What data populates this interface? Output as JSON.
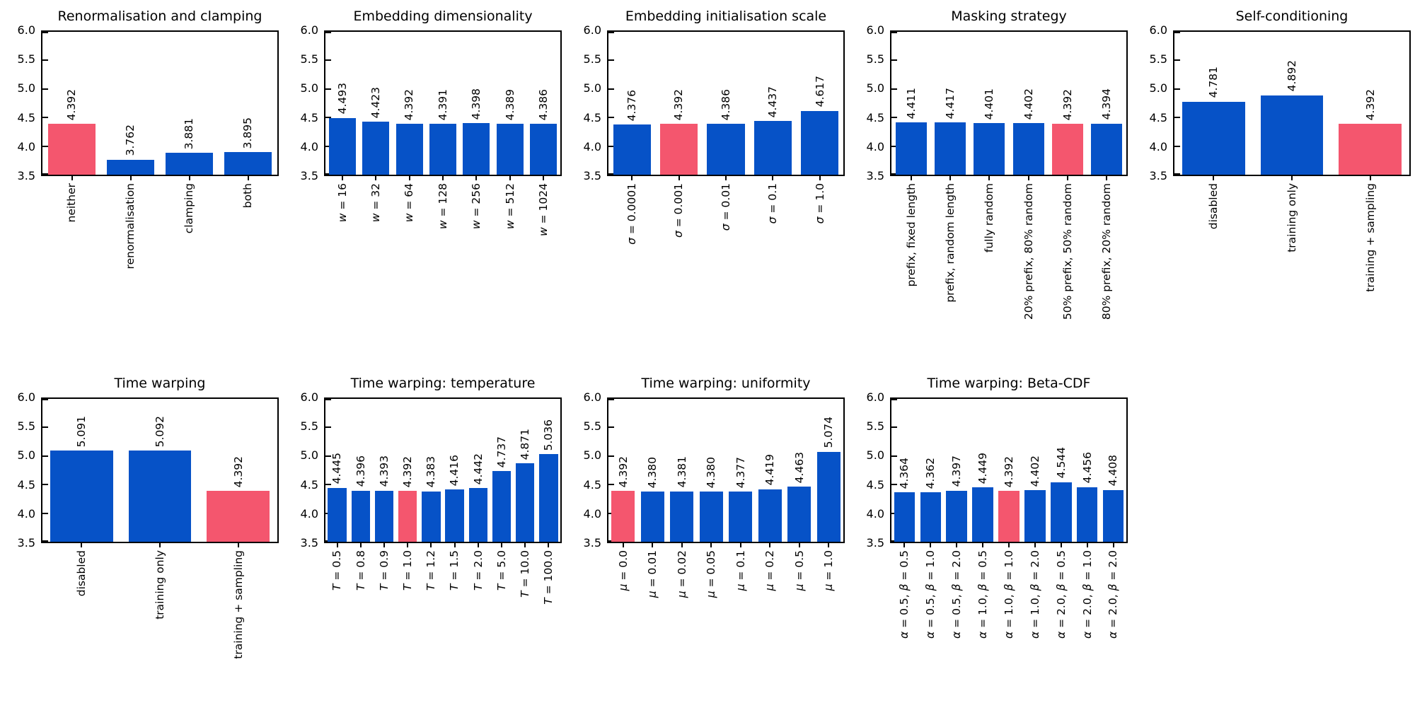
{
  "figure": {
    "background": "#ffffff",
    "bar_color_default": "#0652C7",
    "bar_color_highlight": "#F4566E",
    "spine_color": "#000000",
    "ylim": [
      3.5,
      6.0
    ],
    "yticks": [
      "6.0",
      "5.5",
      "5.0",
      "4.5",
      "4.0",
      "3.5"
    ],
    "grid": false,
    "legend": null
  },
  "chart_data": [
    {
      "type": "bar",
      "title": "Renormalisation and clamping",
      "row": 0,
      "col": 0,
      "categories": [
        "neither",
        "renormalisation",
        "clamping",
        "both"
      ],
      "values": [
        4.392,
        3.762,
        3.881,
        3.895
      ],
      "value_labels": [
        "4.392",
        "3.762",
        "3.881",
        "3.895"
      ],
      "highlight_index": 0,
      "ylim": [
        3.5,
        6.0
      ],
      "xlabel": "",
      "ylabel": ""
    },
    {
      "type": "bar",
      "title": "Embedding dimensionality",
      "row": 0,
      "col": 1,
      "categories": [
        "w = 16",
        "w = 32",
        "w = 64",
        "w = 128",
        "w = 256",
        "w = 512",
        "w = 1024"
      ],
      "values": [
        4.493,
        4.423,
        4.392,
        4.391,
        4.398,
        4.389,
        4.386
      ],
      "value_labels": [
        "4.493",
        "4.423",
        "4.392",
        "4.391",
        "4.398",
        "4.389",
        "4.386"
      ],
      "highlight_index": null,
      "ylim": [
        3.5,
        6.0
      ],
      "xlabel": "",
      "ylabel": ""
    },
    {
      "type": "bar",
      "title": "Embedding initialisation scale",
      "row": 0,
      "col": 2,
      "categories": [
        "σ = 0.0001",
        "σ = 0.001",
        "σ = 0.01",
        "σ = 0.1",
        "σ = 1.0"
      ],
      "values": [
        4.376,
        4.392,
        4.386,
        4.437,
        4.617
      ],
      "value_labels": [
        "4.376",
        "4.392",
        "4.386",
        "4.437",
        "4.617"
      ],
      "highlight_index": 1,
      "ylim": [
        3.5,
        6.0
      ],
      "xlabel": "",
      "ylabel": ""
    },
    {
      "type": "bar",
      "title": "Masking strategy",
      "row": 0,
      "col": 3,
      "categories": [
        "prefix, fixed length",
        "prefix, random length",
        "fully random",
        "20% prefix, 80% random",
        "50% prefix, 50% random",
        "80% prefix, 20% random"
      ],
      "values": [
        4.411,
        4.417,
        4.401,
        4.402,
        4.392,
        4.394
      ],
      "value_labels": [
        "4.411",
        "4.417",
        "4.401",
        "4.402",
        "4.392",
        "4.394"
      ],
      "highlight_index": 4,
      "ylim": [
        3.5,
        6.0
      ],
      "xlabel": "",
      "ylabel": ""
    },
    {
      "type": "bar",
      "title": "Self-conditioning",
      "row": 0,
      "col": 4,
      "categories": [
        "disabled",
        "training only",
        "training + sampling"
      ],
      "values": [
        4.781,
        4.892,
        4.392
      ],
      "value_labels": [
        "4.781",
        "4.892",
        "4.392"
      ],
      "highlight_index": 2,
      "ylim": [
        3.5,
        6.0
      ],
      "xlabel": "",
      "ylabel": ""
    },
    {
      "type": "bar",
      "title": "Time warping",
      "row": 1,
      "col": 0,
      "categories": [
        "disabled",
        "training only",
        "training + sampling"
      ],
      "values": [
        5.091,
        5.092,
        4.392
      ],
      "value_labels": [
        "5.091",
        "5.092",
        "4.392"
      ],
      "highlight_index": 2,
      "ylim": [
        3.5,
        6.0
      ],
      "xlabel": "",
      "ylabel": ""
    },
    {
      "type": "bar",
      "title": "Time warping: temperature",
      "row": 1,
      "col": 1,
      "categories": [
        "T = 0.5",
        "T = 0.8",
        "T = 0.9",
        "T = 1.0",
        "T = 1.2",
        "T = 1.5",
        "T = 2.0",
        "T = 5.0",
        "T = 10.0",
        "T = 100.0"
      ],
      "values": [
        4.445,
        4.396,
        4.393,
        4.392,
        4.383,
        4.416,
        4.442,
        4.737,
        4.871,
        5.036
      ],
      "value_labels": [
        "4.445",
        "4.396",
        "4.393",
        "4.392",
        "4.383",
        "4.416",
        "4.442",
        "4.737",
        "4.871",
        "5.036"
      ],
      "highlight_index": 3,
      "ylim": [
        3.5,
        6.0
      ],
      "xlabel": "",
      "ylabel": ""
    },
    {
      "type": "bar",
      "title": "Time warping: uniformity",
      "row": 1,
      "col": 2,
      "categories": [
        "μ = 0.0",
        "μ = 0.01",
        "μ = 0.02",
        "μ = 0.05",
        "μ = 0.1",
        "μ = 0.2",
        "μ = 0.5",
        "μ = 1.0"
      ],
      "values": [
        4.392,
        4.38,
        4.381,
        4.38,
        4.377,
        4.419,
        4.463,
        5.074
      ],
      "value_labels": [
        "4.392",
        "4.380",
        "4.381",
        "4.380",
        "4.377",
        "4.419",
        "4.463",
        "5.074"
      ],
      "highlight_index": 0,
      "ylim": [
        3.5,
        6.0
      ],
      "xlabel": "",
      "ylabel": ""
    },
    {
      "type": "bar",
      "title": "Time warping: Beta-CDF",
      "row": 1,
      "col": 3,
      "categories": [
        "α = 0.5, β = 0.5",
        "α = 0.5, β = 1.0",
        "α = 0.5, β = 2.0",
        "α = 1.0, β = 0.5",
        "α = 1.0, β = 1.0",
        "α = 1.0, β = 2.0",
        "α = 2.0, β = 0.5",
        "α = 2.0, β = 1.0",
        "α = 2.0, β = 2.0"
      ],
      "values": [
        4.364,
        4.362,
        4.397,
        4.449,
        4.392,
        4.402,
        4.544,
        4.456,
        4.408
      ],
      "value_labels": [
        "4.364",
        "4.362",
        "4.397",
        "4.449",
        "4.392",
        "4.402",
        "4.544",
        "4.456",
        "4.408"
      ],
      "highlight_index": 4,
      "ylim": [
        3.5,
        6.0
      ],
      "xlabel": "",
      "ylabel": ""
    }
  ]
}
